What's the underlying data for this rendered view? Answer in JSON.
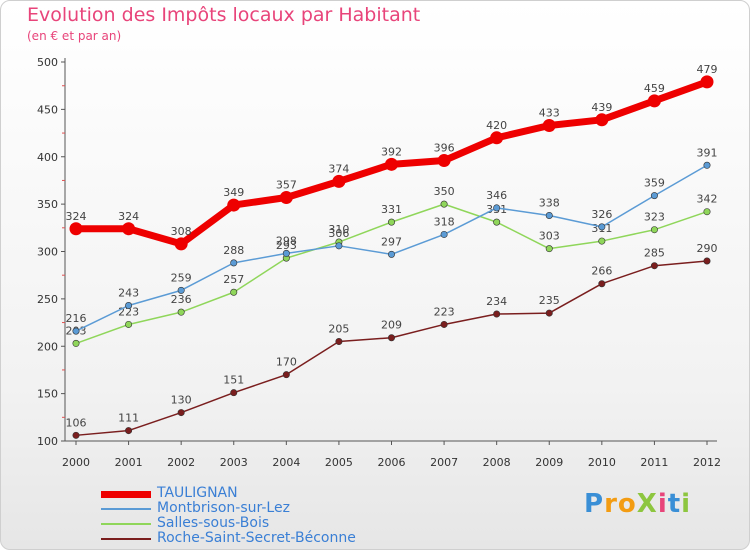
{
  "title": "Evolution des Impôts locaux par Habitant",
  "subtitle": "(en € et par an)",
  "logo": {
    "text": "ProXiti",
    "letters": [
      {
        "ch": "P",
        "color": "#3a8fd6"
      },
      {
        "ch": "r",
        "color": "#f39c12"
      },
      {
        "ch": "o",
        "color": "#f39c12"
      },
      {
        "ch": "X",
        "color": "#8dc63f"
      },
      {
        "ch": "i",
        "color": "#e8447a"
      },
      {
        "ch": "t",
        "color": "#3a8fd6"
      },
      {
        "ch": "i",
        "color": "#8dc63f"
      }
    ]
  },
  "chart_data": {
    "type": "line",
    "x": [
      "2000",
      "2001",
      "2002",
      "2003",
      "2004",
      "2005",
      "2006",
      "2007",
      "2008",
      "2009",
      "2010",
      "2011",
      "2012"
    ],
    "ylim": [
      100,
      500
    ],
    "yticks": [
      100,
      150,
      200,
      250,
      300,
      350,
      400,
      450,
      500
    ],
    "grid": false,
    "legend_position": "bottom-left",
    "series": [
      {
        "name": "Roche-Saint-Secret-Béconne",
        "color": "#7a1e1e",
        "width": 1.5,
        "values": [
          106,
          111,
          130,
          151,
          170,
          205,
          209,
          223,
          234,
          235,
          266,
          285,
          290
        ]
      },
      {
        "name": "Salles-sous-Bois",
        "color": "#8fd65a",
        "width": 1.5,
        "values": [
          203,
          223,
          236,
          257,
          293,
          310,
          331,
          350,
          331,
          303,
          311,
          323,
          342
        ]
      },
      {
        "name": "Montbrison-sur-Lez",
        "color": "#5b9bd5",
        "width": 1.5,
        "values": [
          216,
          243,
          259,
          288,
          298,
          306,
          297,
          318,
          346,
          338,
          326,
          359,
          391
        ]
      },
      {
        "name": "TAULIGNAN",
        "color": "#ee0000",
        "width": 7,
        "values": [
          324,
          324,
          308,
          349,
          357,
          374,
          392,
          396,
          420,
          433,
          439,
          459,
          479
        ]
      }
    ],
    "legend_order": [
      "TAULIGNAN",
      "Montbrison-sur-Lez",
      "Salles-sous-Bois",
      "Roche-Saint-Secret-Béconne"
    ]
  }
}
